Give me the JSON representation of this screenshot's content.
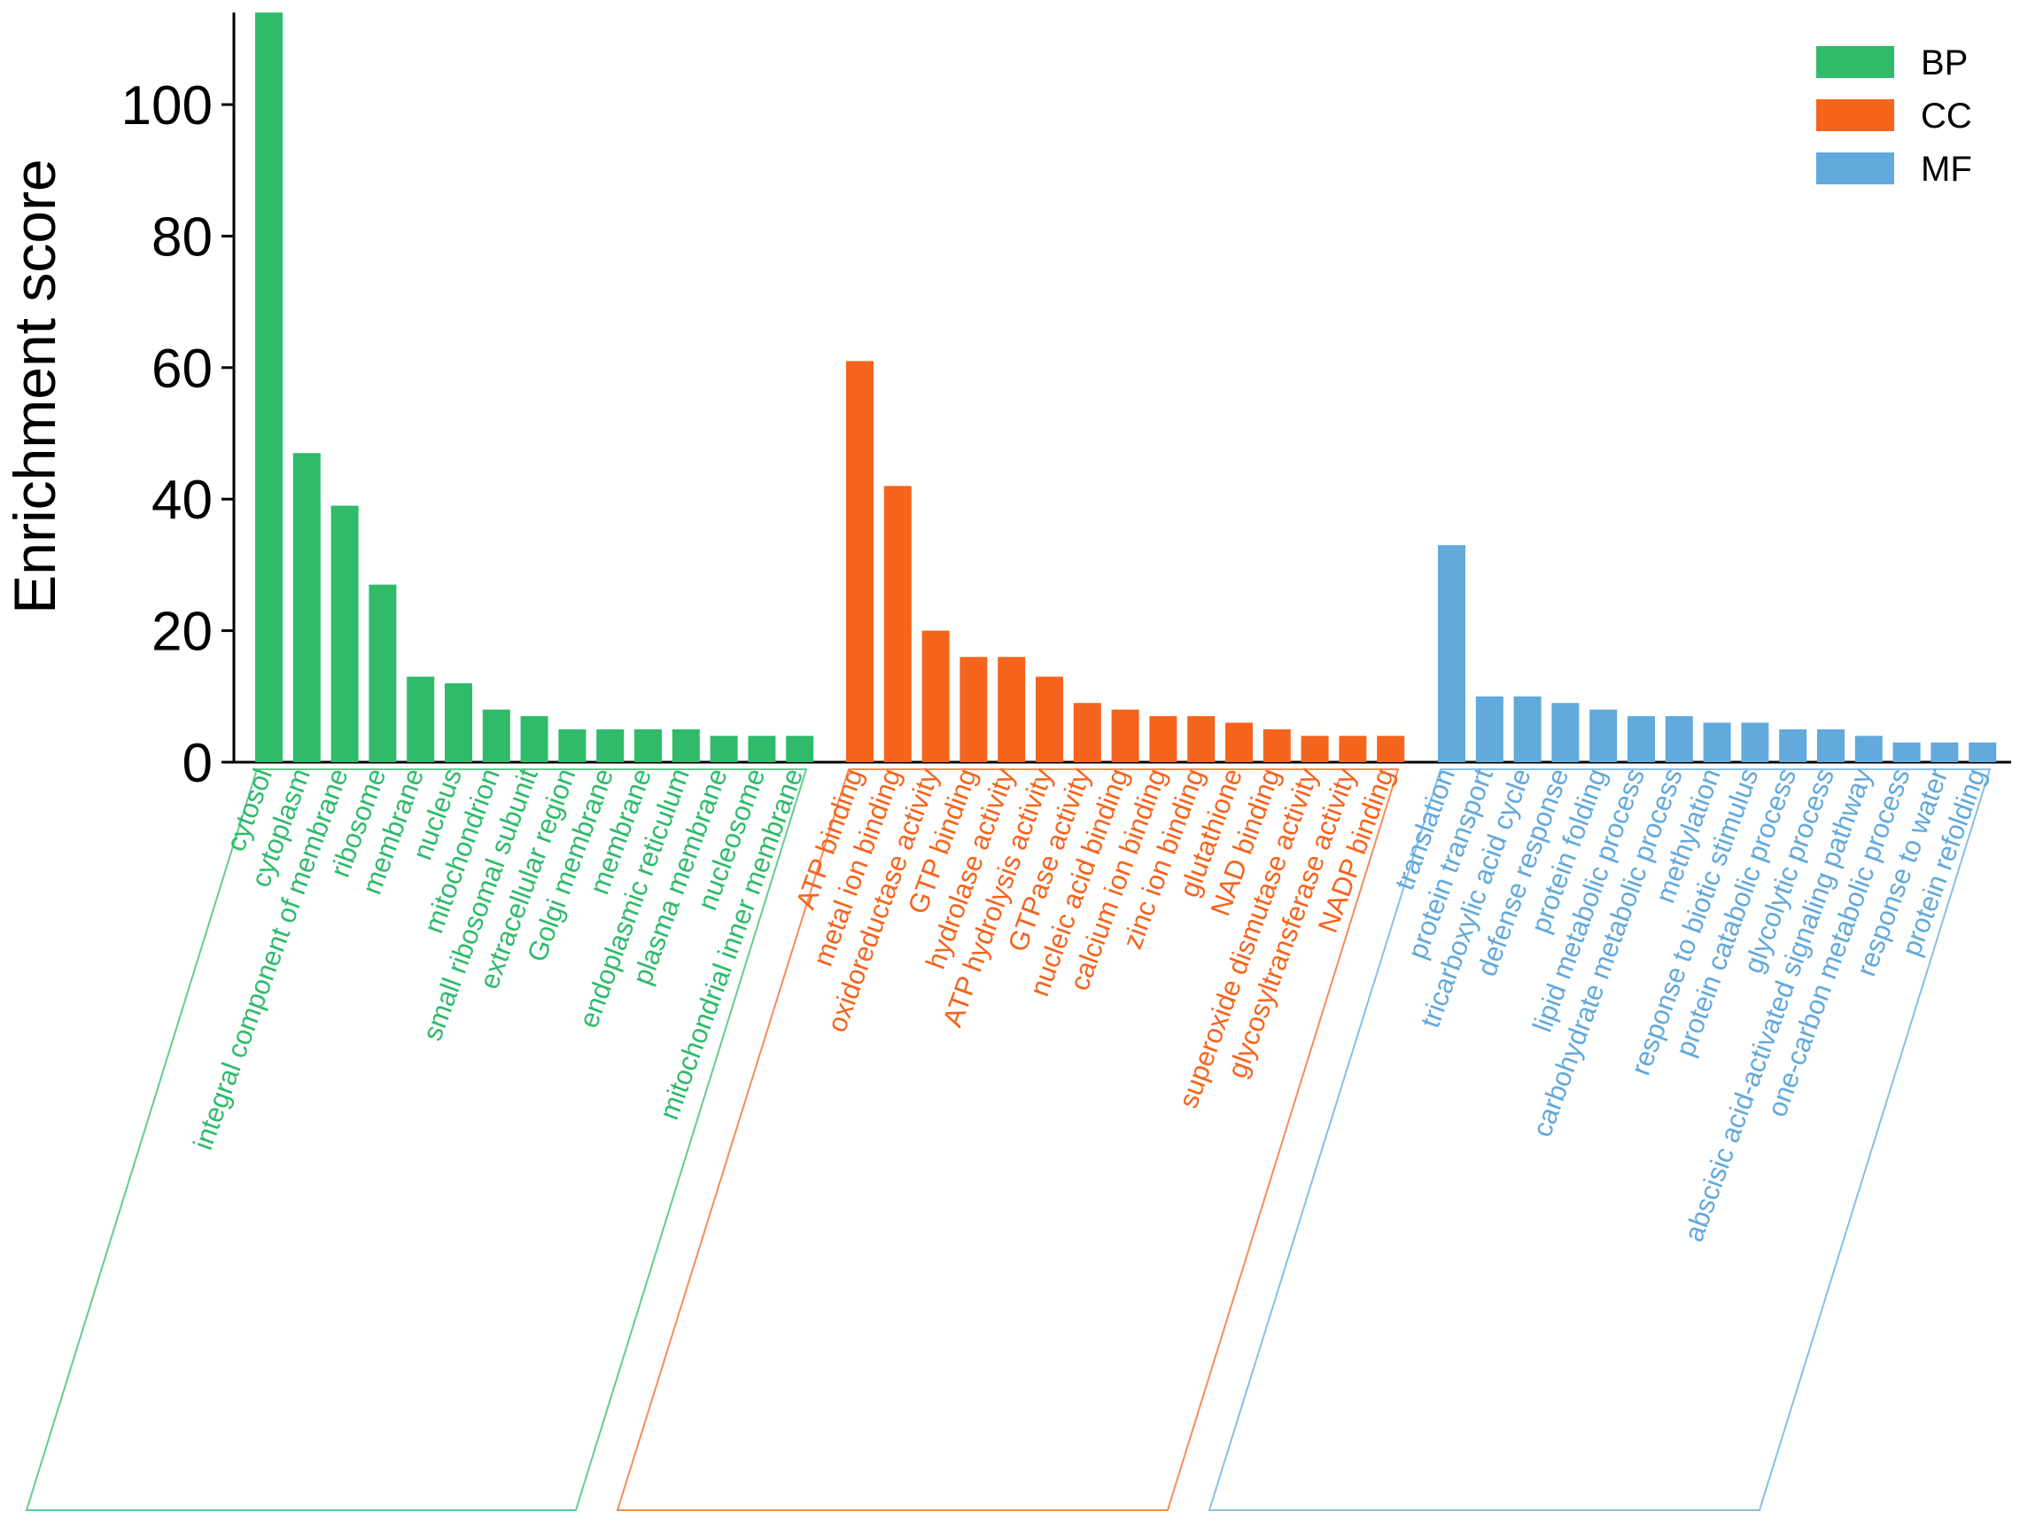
{
  "chart_data": {
    "type": "bar",
    "ylabel": "Enrichment score",
    "xlabel": "",
    "ylim": [
      0,
      114
    ],
    "yticks": [
      0,
      20,
      40,
      60,
      80,
      100
    ],
    "legend_position": "top-right",
    "groups": [
      {
        "name": "BP",
        "color": "#2fbb6a",
        "categories": [
          "cytosol",
          "cytoplasm",
          "integral component of membrane",
          "ribosome",
          "membrane",
          "nucleus",
          "mitochondrion",
          "small ribosomal subunit",
          "extracellular region",
          "Golgi membrane",
          "membrane",
          "endoplasmic reticulum",
          "plasma membrane",
          "nucleosome",
          "mitochondrial inner membrane"
        ],
        "values": [
          114,
          47,
          39,
          27,
          13,
          12,
          8,
          7,
          5,
          5,
          5,
          5,
          4,
          4,
          4
        ]
      },
      {
        "name": "CC",
        "color": "#f5641d",
        "categories": [
          "ATP binding",
          "metal ion binding",
          "oxidoreductase activity",
          "GTP binding",
          "hydrolase activity",
          "ATP hydrolysis activity",
          "GTPase activity",
          "nucleic acid binding",
          "calcium ion binding",
          "zinc ion binding",
          "glutathione",
          "NAD binding",
          "superoxide dismutase activity",
          "glycosyltransferase activity",
          "NADP binding"
        ],
        "values": [
          61,
          42,
          20,
          16,
          16,
          13,
          9,
          8,
          7,
          7,
          6,
          5,
          4,
          4,
          4
        ]
      },
      {
        "name": "MF",
        "color": "#62a9dc",
        "categories": [
          "translation",
          "protein transport",
          "tricarboxylic acid cycle",
          "defense response",
          "protein folding",
          "lipid metabolic process",
          "carbohydrate metabolic process",
          "methylation",
          "response to biotic stimulus",
          "protein catabolic process",
          "glycolytic process",
          "abscisic acid-activated signaling pathway",
          "one-carbon metabolic process",
          "response to water",
          "protein refolding"
        ],
        "values": [
          33,
          10,
          10,
          9,
          8,
          7,
          7,
          6,
          6,
          5,
          5,
          4,
          3,
          3,
          3
        ]
      }
    ]
  }
}
